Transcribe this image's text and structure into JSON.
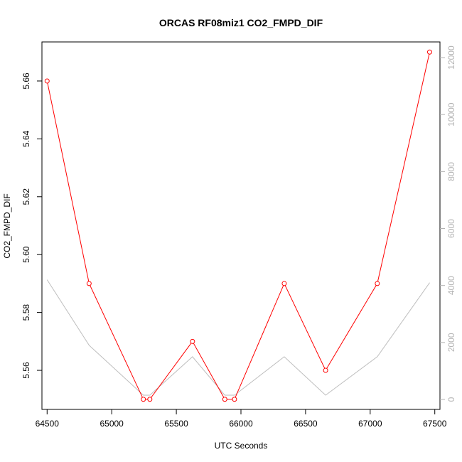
{
  "chart_data": {
    "type": "line",
    "title": "ORCAS RF08miz1 CO2_FMPD_DIF",
    "xlabel": "UTC Seconds",
    "ylabel": "CO2_FMPD_DIF",
    "xlim": [
      64460,
      67540
    ],
    "ylim": [
      5.5465,
      5.6735
    ],
    "y2lim": [
      -350,
      12550
    ],
    "x_ticks": [
      64500,
      65000,
      65500,
      66000,
      66500,
      67000,
      67500
    ],
    "y_ticks": [
      5.56,
      5.58,
      5.6,
      5.62,
      5.64,
      5.66
    ],
    "y_tick_labels": [
      "5.56",
      "5.58",
      "5.60",
      "5.62",
      "5.64",
      "5.66"
    ],
    "y2_ticks": [
      0,
      2000,
      4000,
      6000,
      8000,
      10000,
      12000
    ],
    "series": [
      {
        "role": "primary",
        "color": "#ff0000",
        "markers": "open-circle",
        "x": [
          64500,
          64825,
          65245,
          65295,
          65625,
          65875,
          65950,
          66335,
          66655,
          67055,
          67460
        ],
        "y": [
          5.66,
          5.59,
          5.55,
          5.55,
          5.57,
          5.55,
          5.55,
          5.59,
          5.56,
          5.59,
          5.67
        ]
      },
      {
        "role": "secondary",
        "color": "#bebebe",
        "x": [
          64500,
          64825,
          65245,
          65295,
          65625,
          65875,
          65950,
          66335,
          66655,
          67055,
          67460
        ],
        "y": [
          4200,
          1900,
          150,
          150,
          1500,
          150,
          150,
          1500,
          150,
          1500,
          4100
        ]
      }
    ]
  }
}
